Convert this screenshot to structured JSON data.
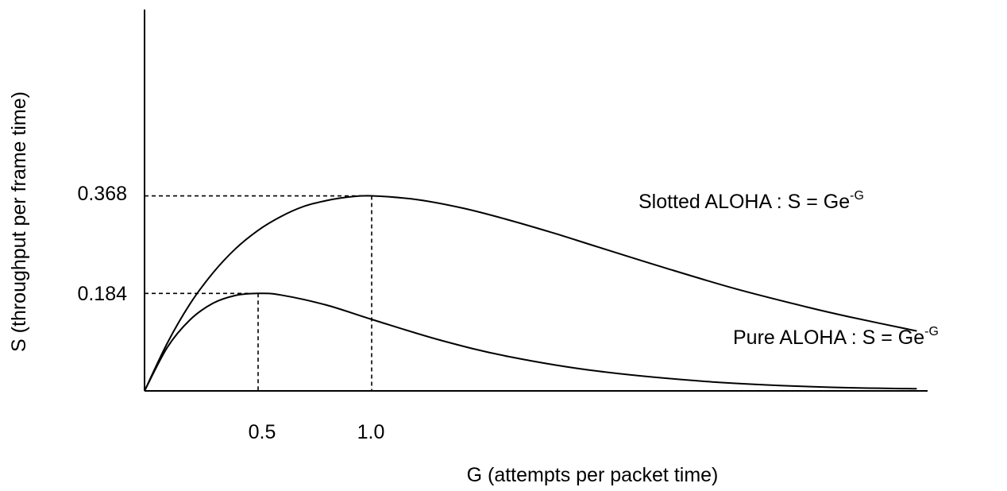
{
  "chart_data": {
    "type": "line",
    "xlabel": "G (attempts per packet time)",
    "ylabel": "S (throughput per frame time)",
    "x_ticks": [
      "0.5",
      "1.0"
    ],
    "y_ticks": [
      "0.368",
      "0.184"
    ],
    "series": [
      {
        "name": "Slotted ALOHA : S = Ge",
        "name_sup": "-G",
        "points": [
          [
            0,
            0
          ],
          [
            0.1,
            0.09
          ],
          [
            0.2,
            0.164
          ],
          [
            0.3,
            0.222
          ],
          [
            0.4,
            0.268
          ],
          [
            0.5,
            0.303
          ],
          [
            0.6,
            0.329
          ],
          [
            0.7,
            0.348
          ],
          [
            0.8,
            0.359
          ],
          [
            0.9,
            0.366
          ],
          [
            1.0,
            0.368
          ],
          [
            1.2,
            0.361
          ],
          [
            1.4,
            0.345
          ],
          [
            1.6,
            0.323
          ],
          [
            1.8,
            0.298
          ],
          [
            2.0,
            0.271
          ],
          [
            2.3,
            0.231
          ],
          [
            2.6,
            0.193
          ],
          [
            2.9,
            0.16
          ],
          [
            3.1,
            0.14
          ],
          [
            3.4,
            0.113
          ]
        ]
      },
      {
        "name": "Pure ALOHA : S = Ge",
        "name_sup": "-G",
        "points": [
          [
            0,
            0
          ],
          [
            0.1,
            0.082
          ],
          [
            0.2,
            0.134
          ],
          [
            0.3,
            0.165
          ],
          [
            0.4,
            0.18
          ],
          [
            0.5,
            0.184
          ],
          [
            0.6,
            0.181
          ],
          [
            0.8,
            0.162
          ],
          [
            1.0,
            0.135
          ],
          [
            1.3,
            0.096
          ],
          [
            1.6,
            0.065
          ],
          [
            2.0,
            0.037
          ],
          [
            2.5,
            0.017
          ],
          [
            3.0,
            0.007
          ],
          [
            3.4,
            0.004
          ]
        ]
      }
    ],
    "peaks": [
      {
        "x": 1.0,
        "y": 0.368,
        "label": "0.368",
        "x_label": "1.0"
      },
      {
        "x": 0.5,
        "y": 0.184,
        "label": "0.184",
        "x_label": "0.5"
      }
    ]
  }
}
